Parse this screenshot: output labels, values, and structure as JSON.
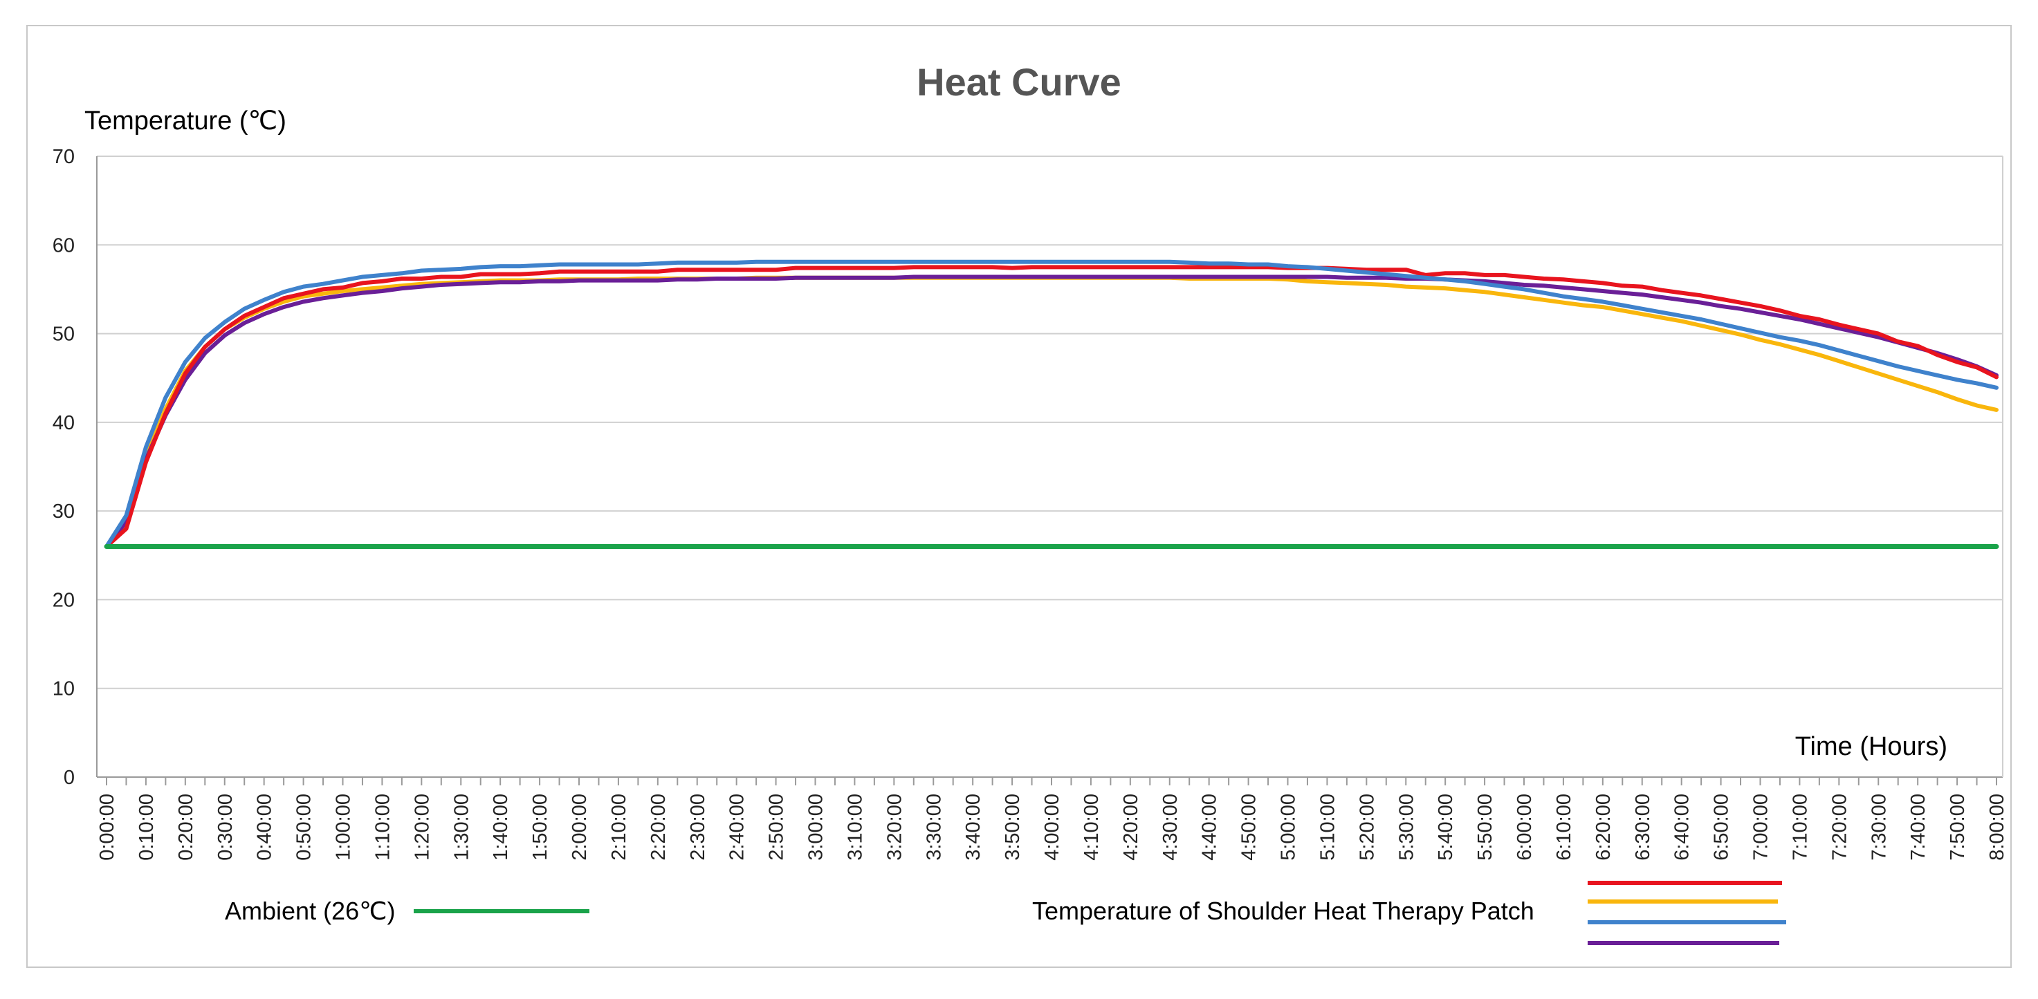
{
  "chart_data": {
    "type": "line",
    "title": "Heat Curve",
    "ylabel": "Temperature (℃)",
    "xlabel": "Time  (Hours)",
    "ylim": [
      0,
      70
    ],
    "yticks": [
      0,
      10,
      20,
      30,
      40,
      50,
      60,
      70
    ],
    "grid": true,
    "x": [
      "0:00:00",
      "0:05:00",
      "0:10:00",
      "0:15:00",
      "0:20:00",
      "0:25:00",
      "0:30:00",
      "0:35:00",
      "0:40:00",
      "0:45:00",
      "0:50:00",
      "0:55:00",
      "1:00:00",
      "1:05:00",
      "1:10:00",
      "1:15:00",
      "1:20:00",
      "1:25:00",
      "1:30:00",
      "1:35:00",
      "1:40:00",
      "1:45:00",
      "1:50:00",
      "1:55:00",
      "2:00:00",
      "2:05:00",
      "2:10:00",
      "2:15:00",
      "2:20:00",
      "2:25:00",
      "2:30:00",
      "2:35:00",
      "2:40:00",
      "2:45:00",
      "2:50:00",
      "2:55:00",
      "3:00:00",
      "3:05:00",
      "3:10:00",
      "3:15:00",
      "3:20:00",
      "3:25:00",
      "3:30:00",
      "3:35:00",
      "3:40:00",
      "3:45:00",
      "3:50:00",
      "3:55:00",
      "4:00:00",
      "4:05:00",
      "4:10:00",
      "4:15:00",
      "4:20:00",
      "4:25:00",
      "4:30:00",
      "4:35:00",
      "4:40:00",
      "4:45:00",
      "4:50:00",
      "4:55:00",
      "5:00:00",
      "5:05:00",
      "5:10:00",
      "5:15:00",
      "5:20:00",
      "5:25:00",
      "5:30:00",
      "5:35:00",
      "5:40:00",
      "5:45:00",
      "5:50:00",
      "5:55:00",
      "6:00:00",
      "6:05:00",
      "6:10:00",
      "6:15:00",
      "6:20:00",
      "6:25:00",
      "6:30:00",
      "6:35:00",
      "6:40:00",
      "6:45:00",
      "6:50:00",
      "6:55:00",
      "7:00:00",
      "7:05:00",
      "7:10:00",
      "7:15:00",
      "7:20:00",
      "7:25:00",
      "7:30:00",
      "7:35:00",
      "7:40:00",
      "7:45:00",
      "7:50:00",
      "7:55:00",
      "8:00:00"
    ],
    "xtick_labels": [
      "0:00:00",
      "0:10:00",
      "0:20:00",
      "0:30:00",
      "0:40:00",
      "0:50:00",
      "1:00:00",
      "1:10:00",
      "1:20:00",
      "1:30:00",
      "1:40:00",
      "1:50:00",
      "2:00:00",
      "2:10:00",
      "2:20:00",
      "2:30:00",
      "2:40:00",
      "2:50:00",
      "3:00:00",
      "3:10:00",
      "3:20:00",
      "3:30:00",
      "3:40:00",
      "3:50:00",
      "4:00:00",
      "4:10:00",
      "4:20:00",
      "4:30:00",
      "4:40:00",
      "4:50:00",
      "5:00:00",
      "5:10:00",
      "5:20:00",
      "5:30:00",
      "5:40:00",
      "5:50:00",
      "6:00:00",
      "6:10:00",
      "6:20:00",
      "6:30:00",
      "6:40:00",
      "6:50:00",
      "7:00:00",
      "7:10:00",
      "7:20:00",
      "7:30:00",
      "7:40:00",
      "7:50:00",
      "8:00:00"
    ],
    "series": [
      {
        "name": "Ambient (26℃)",
        "color": "#1aa34a",
        "values": [
          26,
          26,
          26,
          26,
          26,
          26,
          26,
          26,
          26,
          26,
          26,
          26,
          26,
          26,
          26,
          26,
          26,
          26,
          26,
          26,
          26,
          26,
          26,
          26,
          26,
          26,
          26,
          26,
          26,
          26,
          26,
          26,
          26,
          26,
          26,
          26,
          26,
          26,
          26,
          26,
          26,
          26,
          26,
          26,
          26,
          26,
          26,
          26,
          26,
          26,
          26,
          26,
          26,
          26,
          26,
          26,
          26,
          26,
          26,
          26,
          26,
          26,
          26,
          26,
          26,
          26,
          26,
          26,
          26,
          26,
          26,
          26,
          26,
          26,
          26,
          26,
          26,
          26,
          26,
          26,
          26,
          26,
          26,
          26,
          26,
          26,
          26,
          26,
          26,
          26,
          26,
          26,
          26,
          26,
          26,
          26,
          26
        ]
      },
      {
        "color": "#e8141e",
        "values": [
          26,
          28,
          35.5,
          41,
          45.5,
          48.5,
          50.5,
          52,
          53,
          54,
          54.5,
          55,
          55.2,
          55.7,
          55.9,
          56.2,
          56.2,
          56.4,
          56.4,
          56.7,
          56.7,
          56.7,
          56.8,
          57,
          57,
          57,
          57,
          57,
          57,
          57.2,
          57.2,
          57.2,
          57.2,
          57.2,
          57.2,
          57.4,
          57.4,
          57.4,
          57.4,
          57.4,
          57.4,
          57.5,
          57.5,
          57.5,
          57.5,
          57.5,
          57.4,
          57.5,
          57.5,
          57.5,
          57.5,
          57.5,
          57.5,
          57.5,
          57.5,
          57.5,
          57.5,
          57.5,
          57.5,
          57.5,
          57.4,
          57.4,
          57.4,
          57.3,
          57.2,
          57.2,
          57.2,
          56.6,
          56.8,
          56.8,
          56.6,
          56.6,
          56.4,
          56.2,
          56.1,
          55.9,
          55.7,
          55.4,
          55.3,
          54.9,
          54.6,
          54.3,
          53.9,
          53.5,
          53.1,
          52.6,
          52,
          51.6,
          51,
          50.5,
          50,
          49.1,
          48.6,
          47.6,
          46.8,
          46.2,
          45.1
        ]
      },
      {
        "color": "#f9b60c",
        "values": [
          26,
          28.5,
          36,
          41.5,
          45.8,
          48.5,
          50.5,
          51.8,
          52.8,
          53.6,
          54.2,
          54.5,
          54.8,
          55,
          55.2,
          55.4,
          55.6,
          55.7,
          55.8,
          55.9,
          56,
          56,
          56,
          56.1,
          56.1,
          56.1,
          56.1,
          56.2,
          56.2,
          56.2,
          56.2,
          56.2,
          56.2,
          56.3,
          56.3,
          56.3,
          56.3,
          56.3,
          56.3,
          56.3,
          56.3,
          56.3,
          56.3,
          56.3,
          56.3,
          56.3,
          56.3,
          56.3,
          56.3,
          56.3,
          56.3,
          56.3,
          56.3,
          56.3,
          56.3,
          56.2,
          56.2,
          56.2,
          56.2,
          56.2,
          56.1,
          55.9,
          55.8,
          55.7,
          55.6,
          55.5,
          55.3,
          55.2,
          55.1,
          54.9,
          54.7,
          54.4,
          54.1,
          53.8,
          53.5,
          53.2,
          53,
          52.6,
          52.2,
          51.8,
          51.4,
          50.9,
          50.4,
          49.9,
          49.3,
          48.8,
          48.2,
          47.6,
          46.9,
          46.2,
          45.5,
          44.8,
          44.1,
          43.4,
          42.6,
          41.9,
          41.4
        ]
      },
      {
        "color": "#3f82cc",
        "values": [
          26,
          29.5,
          37.2,
          42.8,
          46.8,
          49.5,
          51.3,
          52.8,
          53.8,
          54.7,
          55.3,
          55.6,
          56,
          56.4,
          56.6,
          56.8,
          57.1,
          57.2,
          57.3,
          57.5,
          57.6,
          57.6,
          57.7,
          57.8,
          57.8,
          57.8,
          57.8,
          57.8,
          57.9,
          58,
          58,
          58,
          58,
          58.1,
          58.1,
          58.1,
          58.1,
          58.1,
          58.1,
          58.1,
          58.1,
          58.1,
          58.1,
          58.1,
          58.1,
          58.1,
          58.1,
          58.1,
          58.1,
          58.1,
          58.1,
          58.1,
          58.1,
          58.1,
          58.1,
          58,
          57.9,
          57.9,
          57.8,
          57.8,
          57.6,
          57.5,
          57.3,
          57.1,
          56.9,
          56.7,
          56.5,
          56.3,
          56.1,
          55.9,
          55.6,
          55.3,
          55,
          54.6,
          54.2,
          53.9,
          53.6,
          53.2,
          52.8,
          52.4,
          52,
          51.6,
          51.1,
          50.6,
          50.1,
          49.6,
          49.2,
          48.7,
          48.1,
          47.5,
          46.9,
          46.3,
          45.8,
          45.3,
          44.8,
          44.4,
          43.9
        ]
      },
      {
        "color": "#6a1f97",
        "values": [
          26,
          28.8,
          35.8,
          40.8,
          44.8,
          47.8,
          49.8,
          51.2,
          52.2,
          53,
          53.6,
          54,
          54.3,
          54.6,
          54.8,
          55.1,
          55.3,
          55.5,
          55.6,
          55.7,
          55.8,
          55.8,
          55.9,
          55.9,
          56,
          56,
          56,
          56,
          56,
          56.1,
          56.1,
          56.2,
          56.2,
          56.2,
          56.2,
          56.3,
          56.3,
          56.3,
          56.3,
          56.3,
          56.3,
          56.4,
          56.4,
          56.4,
          56.4,
          56.4,
          56.4,
          56.4,
          56.4,
          56.4,
          56.4,
          56.4,
          56.4,
          56.4,
          56.4,
          56.4,
          56.4,
          56.4,
          56.4,
          56.4,
          56.4,
          56.4,
          56.4,
          56.3,
          56.3,
          56.3,
          56.2,
          56.2,
          56.1,
          56,
          55.9,
          55.7,
          55.5,
          55.4,
          55.2,
          55,
          54.8,
          54.6,
          54.4,
          54.1,
          53.8,
          53.5,
          53.1,
          52.8,
          52.4,
          52,
          51.6,
          51.1,
          50.6,
          50.1,
          49.6,
          49,
          48.4,
          47.8,
          47.1,
          46.3,
          45.3
        ]
      }
    ],
    "legend": {
      "ambient_label": "Ambient (26℃)",
      "patch_label": "Temperature of  Shoulder Heat Therapy Patch",
      "placement": "bottom"
    }
  }
}
